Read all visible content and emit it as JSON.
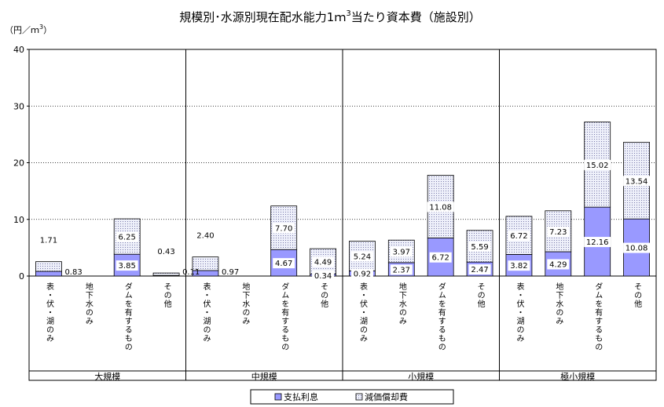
{
  "chart_data": {
    "type": "bar",
    "stacked": true,
    "title": "規模別･水源別現在配水能力1ｍ",
    "title_sup": "3",
    "title_suffix": "当たり資本費（施設別）",
    "ylabel": "（円／ｍ",
    "ylabel_sup": "3",
    "ylabel_suffix": "）",
    "ylim": [
      0,
      40
    ],
    "yticks": [
      "0",
      "10",
      "20",
      "30",
      "40"
    ],
    "grid": true,
    "legend_position": "bottom",
    "categories": [
      "表・伏・湖のみ",
      "地下水のみ",
      "ダムを有するもの",
      "その他",
      "表・伏・湖のみ",
      "地下水のみ",
      "ダムを有するもの",
      "その他",
      "表・伏・湖のみ",
      "地下水のみ",
      "ダムを有するもの",
      "その他",
      "表・伏・湖のみ",
      "地下水のみ",
      "ダムを有するもの",
      "その他"
    ],
    "groups": [
      "大規模",
      "中規模",
      "小規模",
      "極小規模"
    ],
    "series": [
      {
        "name": "支払利息",
        "color": "#9999ff",
        "values": [
          0.83,
          0,
          3.85,
          0.11,
          0.97,
          0,
          4.67,
          0.34,
          0.92,
          2.37,
          6.72,
          2.47,
          3.82,
          4.29,
          12.16,
          10.08
        ],
        "labels": [
          "0.83",
          "",
          "3.85",
          "0.11",
          "0.97",
          "",
          "4.67",
          "0.34",
          "0.92",
          "2.37",
          "6.72",
          "2.47",
          "3.82",
          "4.29",
          "12.16",
          "10.08"
        ]
      },
      {
        "name": "減価償却費",
        "color": "#e8e8f8",
        "values": [
          1.71,
          0,
          6.25,
          0.43,
          2.4,
          0,
          7.7,
          4.49,
          5.24,
          3.97,
          11.08,
          5.59,
          6.72,
          7.23,
          15.02,
          13.54
        ],
        "labels": [
          "1.71",
          "",
          "6.25",
          "0.43",
          "2.40",
          "",
          "7.70",
          "4.49",
          "5.24",
          "3.97",
          "11.08",
          "5.59",
          "6.72",
          "7.23",
          "15.02",
          "13.54"
        ]
      }
    ]
  }
}
